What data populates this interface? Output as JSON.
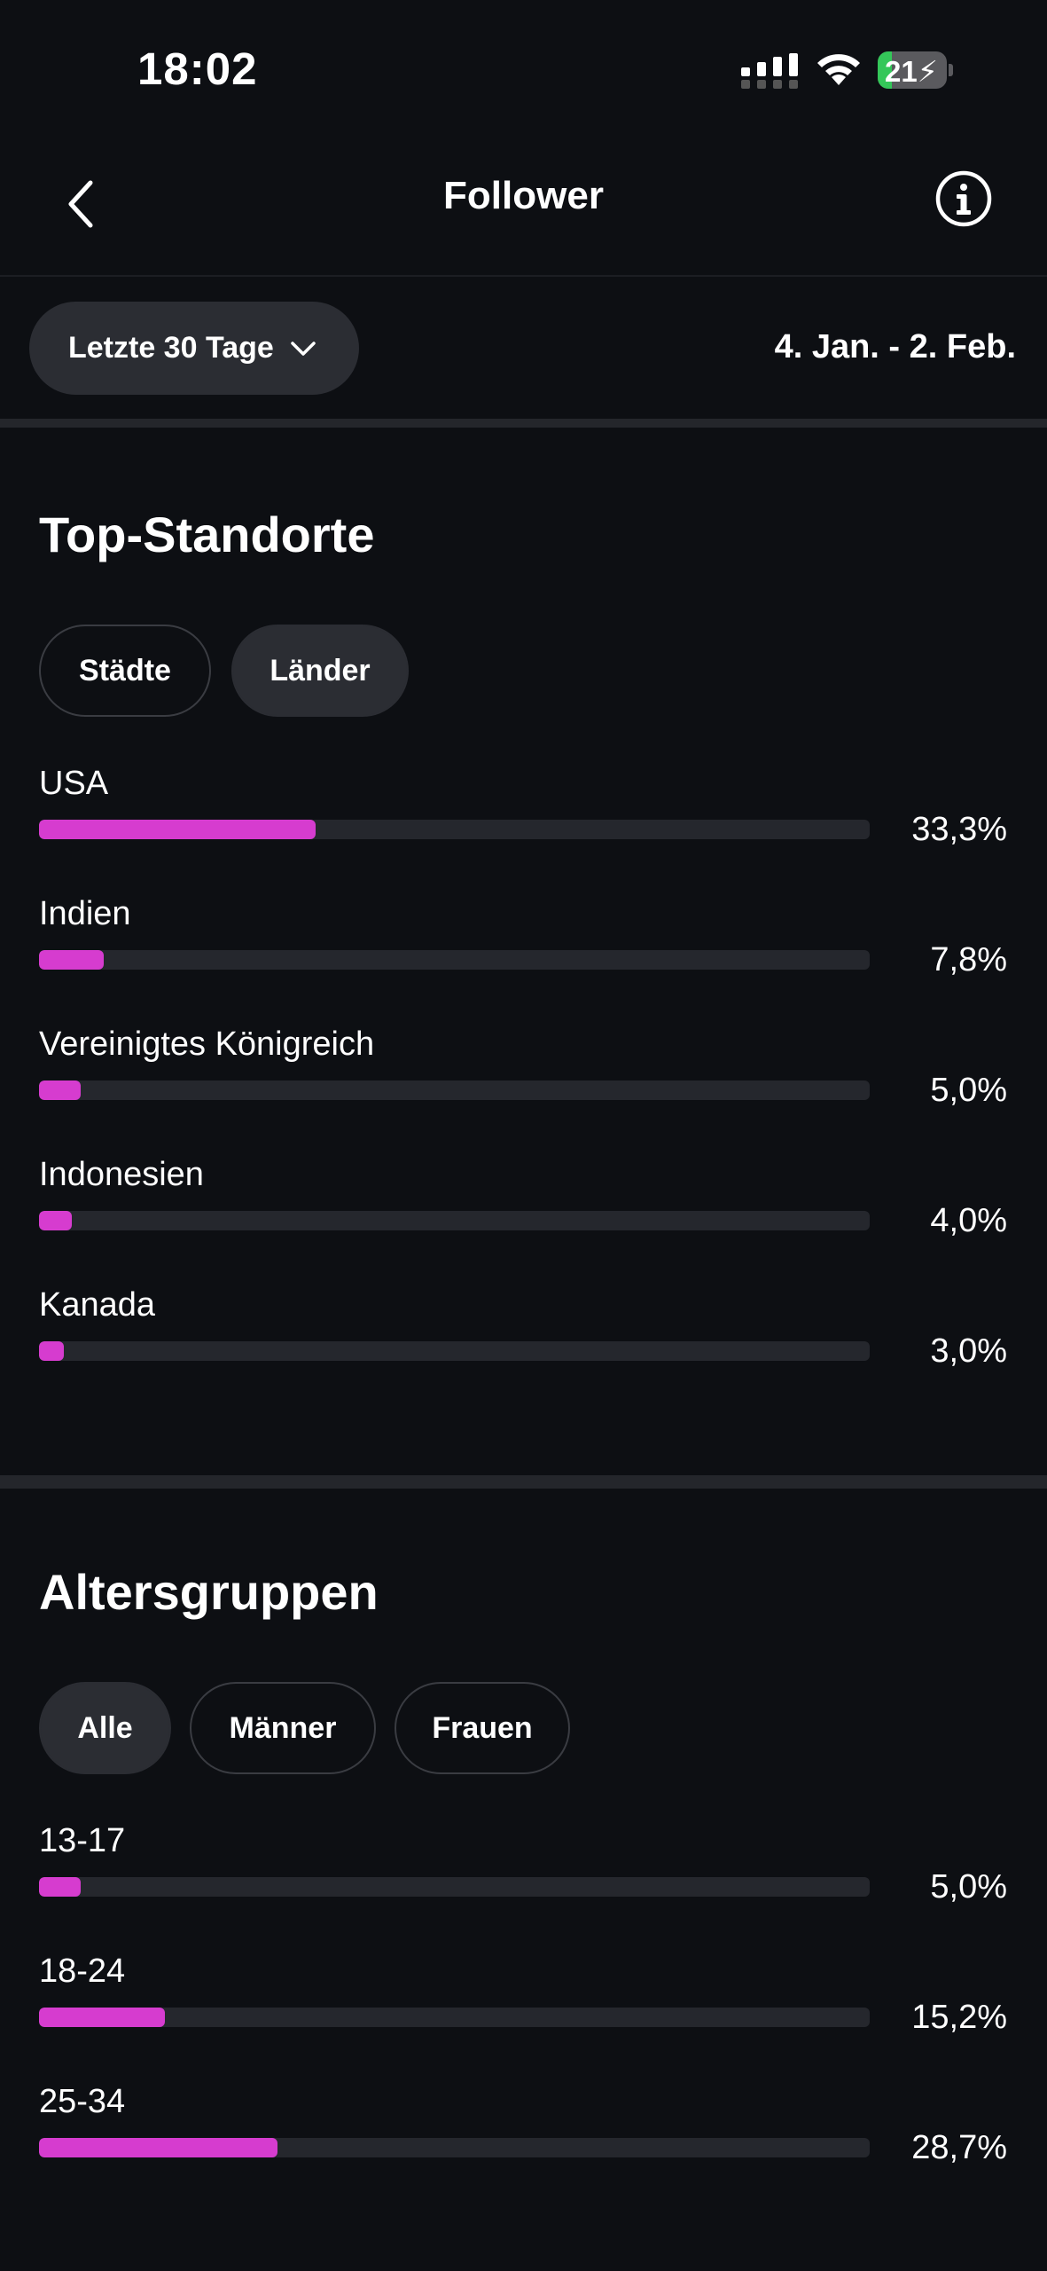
{
  "status_bar": {
    "time": "18:02",
    "battery": "21",
    "battery_level": 0.21
  },
  "nav": {
    "title": "Follower"
  },
  "filter": {
    "period_label": "Letzte 30 Tage",
    "date_range": "4. Jan. - 2. Feb."
  },
  "top_locations": {
    "title": "Top-Standorte",
    "tabs": [
      {
        "label": "Städte",
        "selected": false
      },
      {
        "label": "Länder",
        "selected": true
      }
    ],
    "items": [
      {
        "label": "USA",
        "value": "33,3%",
        "fraction": 0.333
      },
      {
        "label": "Indien",
        "value": "7,8%",
        "fraction": 0.078
      },
      {
        "label": "Vereinigtes Königreich",
        "value": "5,0%",
        "fraction": 0.05
      },
      {
        "label": "Indonesien",
        "value": "4,0%",
        "fraction": 0.04
      },
      {
        "label": "Kanada",
        "value": "3,0%",
        "fraction": 0.03
      }
    ]
  },
  "age_groups": {
    "title": "Altersgruppen",
    "tabs": [
      {
        "label": "Alle",
        "selected": true
      },
      {
        "label": "Männer",
        "selected": false
      },
      {
        "label": "Frauen",
        "selected": false
      }
    ],
    "items": [
      {
        "label": "13-17",
        "value": "5,0%",
        "fraction": 0.05
      },
      {
        "label": "18-24",
        "value": "15,2%",
        "fraction": 0.152
      },
      {
        "label": "25-34",
        "value": "28,7%",
        "fraction": 0.287
      }
    ]
  },
  "colors": {
    "bar_fill": "#d63ccf",
    "bar_track": "#25272d",
    "background": "#0d0f13",
    "battery_green": "#34c759"
  }
}
